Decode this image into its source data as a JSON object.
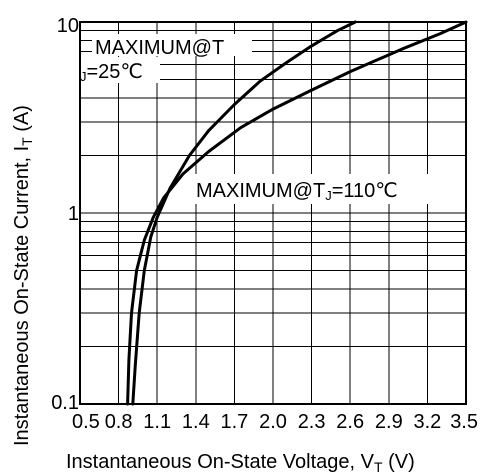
{
  "chart_data": {
    "type": "line",
    "xlabel_main": "Instantaneous On-State Voltage, V",
    "xlabel_sub": "T",
    "xlabel_unit": " (V)",
    "ylabel_main": "Instantaneous On-State Current, I",
    "ylabel_sub": "T",
    "ylabel_unit": " (A)",
    "xlim": [
      0.5,
      3.5
    ],
    "ylim": [
      0.1,
      10
    ],
    "y_scale": "log",
    "grid": true,
    "x_ticks": [
      {
        "value": 0.5,
        "label": "0.5"
      },
      {
        "value": 0.8,
        "label": "0.8"
      },
      {
        "value": 1.1,
        "label": "1.1"
      },
      {
        "value": 1.4,
        "label": "1.4"
      },
      {
        "value": 1.7,
        "label": "1.7"
      },
      {
        "value": 2.0,
        "label": "2.0"
      },
      {
        "value": 2.3,
        "label": "2.3"
      },
      {
        "value": 2.6,
        "label": "2.6"
      },
      {
        "value": 2.9,
        "label": "2.9"
      },
      {
        "value": 3.2,
        "label": "3.2"
      },
      {
        "value": 3.5,
        "label": "3.5"
      }
    ],
    "y_ticks": [
      {
        "value": 0.1,
        "label": "0.1"
      },
      {
        "value": 1,
        "label": "1"
      },
      {
        "value": 10,
        "label": "10"
      }
    ],
    "series": [
      {
        "name_main": "MAXIMUM@T",
        "name_sub": "J",
        "name_tail": "=25℃",
        "x": [
          0.91,
          0.93,
          0.96,
          1.0,
          1.05,
          1.1,
          1.2,
          1.35,
          1.5,
          1.7,
          1.9,
          2.1,
          2.3,
          2.5,
          2.64
        ],
        "y": [
          0.1,
          0.16,
          0.3,
          0.5,
          0.75,
          0.95,
          1.35,
          2.0,
          2.7,
          3.7,
          4.9,
          6.1,
          7.5,
          9.0,
          10
        ]
      },
      {
        "name_main": "MAXIMUM@T",
        "name_sub": "J",
        "name_tail": "=110℃",
        "x": [
          0.87,
          0.88,
          0.9,
          0.94,
          1.0,
          1.07,
          1.15,
          1.3,
          1.5,
          1.75,
          2.0,
          2.3,
          2.6,
          3.0,
          3.3,
          3.5
        ],
        "y": [
          0.1,
          0.17,
          0.3,
          0.5,
          0.72,
          0.95,
          1.2,
          1.6,
          2.1,
          2.8,
          3.5,
          4.4,
          5.5,
          7.2,
          8.7,
          10
        ]
      }
    ]
  }
}
